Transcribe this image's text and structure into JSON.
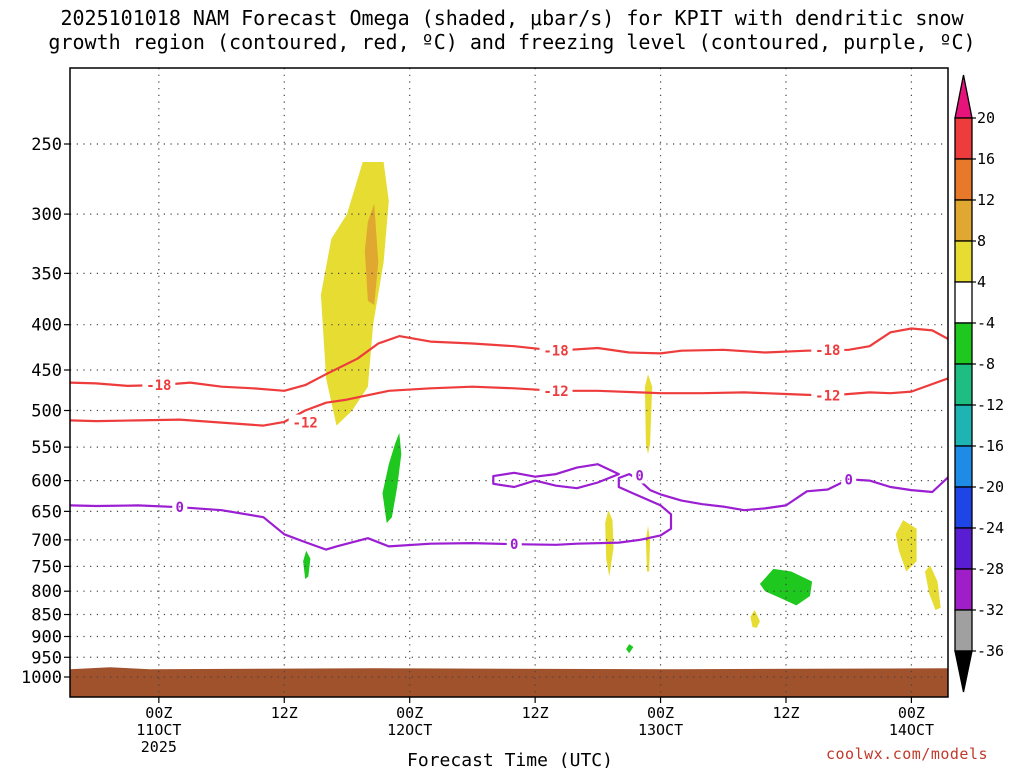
{
  "title_line1": "2025101018 NAM Forecast Omega (shaded, μbar/s) for KPIT with dendritic snow",
  "title_line2": "growth region (contoured, red, ºC) and freezing level (contoured, purple, ºC)",
  "credit": "coolwx.com/models",
  "chart_data": {
    "type": "contour",
    "title": "2025101018 NAM Forecast Omega (shaded, μbar/s) for KPIT with dendritic snow growth region (contoured, red, ºC) and freezing level (contoured, purple, ºC)",
    "xlabel": "Forecast Time (UTC)",
    "ylabel": "",
    "x_range_hours": [
      -2.5,
      81.5
    ],
    "y_axis": {
      "type": "log-pressure",
      "range_hPa": [
        1000,
        200
      ],
      "ticks": [
        250,
        300,
        350,
        400,
        450,
        500,
        550,
        600,
        650,
        700,
        750,
        800,
        850,
        900,
        950,
        1000
      ],
      "grid": "dotted"
    },
    "x_ticks": [
      {
        "hour": 6,
        "label": "00Z",
        "sub": "11OCT",
        "sub2": "2025"
      },
      {
        "hour": 18,
        "label": "12Z",
        "sub": "",
        "sub2": ""
      },
      {
        "hour": 30,
        "label": "00Z",
        "sub": "12OCT",
        "sub2": ""
      },
      {
        "hour": 42,
        "label": "12Z",
        "sub": "",
        "sub2": ""
      },
      {
        "hour": 54,
        "label": "00Z",
        "sub": "13OCT",
        "sub2": ""
      },
      {
        "hour": 66,
        "label": "12Z",
        "sub": "",
        "sub2": ""
      },
      {
        "hour": 78,
        "label": "00Z",
        "sub": "14OCT",
        "sub2": ""
      }
    ],
    "colorbar": {
      "labels": [
        "20",
        "16",
        "12",
        "8",
        "4",
        "-4",
        "-8",
        "-12",
        "-16",
        "-20",
        "-24",
        "-28",
        "-32",
        "-36"
      ],
      "colors": [
        "#ee3c3c",
        "#e8782a",
        "#e0a830",
        "#e6dc32",
        "#ffffff",
        "#1ec81e",
        "#1ebe82",
        "#1eb4b4",
        "#1e8ce6",
        "#1e46e6",
        "#5a1ed2",
        "#a01ec8",
        "#a0a0a0"
      ],
      "top_arrow_color": "#e6147a",
      "bottom_arrow_color": "#000000"
    },
    "series": [
      {
        "name": "-18",
        "kind": "dgz_contour",
        "color": "#ee3c3c",
        "label": "-18",
        "points": [
          [
            -2.5,
            465
          ],
          [
            0,
            466
          ],
          [
            3,
            469
          ],
          [
            6,
            468
          ],
          [
            9,
            465
          ],
          [
            12,
            470
          ],
          [
            15,
            472
          ],
          [
            18,
            475
          ],
          [
            20,
            468
          ],
          [
            22,
            455
          ],
          [
            25,
            437
          ],
          [
            27,
            420
          ],
          [
            29,
            412
          ],
          [
            32,
            418
          ],
          [
            36,
            420
          ],
          [
            40,
            423
          ],
          [
            44,
            428
          ],
          [
            48,
            425
          ],
          [
            51,
            430
          ],
          [
            54,
            431
          ],
          [
            56,
            428
          ],
          [
            60,
            427
          ],
          [
            64,
            430
          ],
          [
            68,
            428
          ],
          [
            72,
            427
          ],
          [
            74,
            423
          ],
          [
            76,
            408
          ],
          [
            78,
            404
          ],
          [
            80,
            406
          ],
          [
            81.5,
            415
          ]
        ],
        "labels_at": [
          [
            6,
            468
          ],
          [
            44,
            428
          ],
          [
            70,
            427
          ]
        ]
      },
      {
        "name": "-12",
        "kind": "dgz_contour",
        "color": "#ee3c3c",
        "label": "-12",
        "points": [
          [
            -2.5,
            513
          ],
          [
            0,
            514
          ],
          [
            4,
            513
          ],
          [
            8,
            512
          ],
          [
            12,
            516
          ],
          [
            16,
            520
          ],
          [
            18,
            515
          ],
          [
            20,
            500
          ],
          [
            22,
            490
          ],
          [
            24,
            486
          ],
          [
            28,
            475
          ],
          [
            32,
            472
          ],
          [
            36,
            470
          ],
          [
            40,
            472
          ],
          [
            44,
            475
          ],
          [
            48,
            475
          ],
          [
            52,
            477
          ],
          [
            54,
            478
          ],
          [
            58,
            478
          ],
          [
            62,
            477
          ],
          [
            66,
            479
          ],
          [
            70,
            481
          ],
          [
            72,
            479
          ],
          [
            74,
            477
          ],
          [
            76,
            478
          ],
          [
            78,
            476
          ],
          [
            81.5,
            460
          ]
        ],
        "labels_at": [
          [
            20,
            516
          ],
          [
            44,
            475
          ],
          [
            70,
            481
          ]
        ]
      },
      {
        "name": "0",
        "kind": "freezing_contour",
        "color": "#9b1ed2",
        "label": "0",
        "points": [
          [
            -2.5,
            640
          ],
          [
            0,
            641
          ],
          [
            4,
            640
          ],
          [
            8,
            643
          ],
          [
            12,
            648
          ],
          [
            16,
            660
          ],
          [
            18,
            690
          ],
          [
            20,
            704
          ],
          [
            22,
            718
          ],
          [
            23,
            712
          ],
          [
            26,
            697
          ],
          [
            28,
            712
          ],
          [
            32,
            707
          ],
          [
            36,
            706
          ],
          [
            40,
            708
          ],
          [
            44,
            709
          ],
          [
            46,
            707
          ],
          [
            50,
            705
          ],
          [
            52,
            700
          ],
          [
            54,
            692
          ],
          [
            55,
            680
          ],
          [
            55,
            655
          ],
          [
            54,
            640
          ],
          [
            52,
            625
          ],
          [
            50,
            610
          ],
          [
            50,
            596
          ],
          [
            51,
            590
          ],
          [
            52,
            600
          ],
          [
            53,
            615
          ],
          [
            54,
            622
          ],
          [
            56,
            632
          ],
          [
            58,
            638
          ],
          [
            60,
            642
          ],
          [
            62,
            648
          ],
          [
            64,
            645
          ],
          [
            66,
            640
          ],
          [
            68,
            617
          ],
          [
            70,
            614
          ],
          [
            72,
            598
          ],
          [
            74,
            600
          ],
          [
            76,
            610
          ],
          [
            78,
            615
          ],
          [
            80,
            618
          ],
          [
            81.5,
            595
          ]
        ],
        "labels_at": [
          [
            8,
            643
          ],
          [
            40,
            708
          ],
          [
            52,
            592
          ],
          [
            72,
            598
          ]
        ]
      },
      {
        "name": "0-loop",
        "kind": "freezing_contour",
        "color": "#9b1ed2",
        "closed": true,
        "points": [
          [
            38,
            593
          ],
          [
            40,
            588
          ],
          [
            42,
            594
          ],
          [
            44,
            590
          ],
          [
            46,
            580
          ],
          [
            48,
            575
          ],
          [
            50,
            590
          ],
          [
            48,
            603
          ],
          [
            46,
            612
          ],
          [
            44,
            608
          ],
          [
            42,
            600
          ],
          [
            40,
            610
          ],
          [
            38,
            605
          ]
        ]
      }
    ],
    "shaded_regions": [
      {
        "name": "upper-lift",
        "omega_bin": "4 to 8",
        "color": "#e6dc32",
        "points": [
          [
            23,
            520
          ],
          [
            22,
            460
          ],
          [
            21.5,
            370
          ],
          [
            22.5,
            320
          ],
          [
            24,
            300
          ],
          [
            25.5,
            262
          ],
          [
            27.5,
            262
          ],
          [
            28,
            290
          ],
          [
            27.5,
            340
          ],
          [
            26.5,
            400
          ],
          [
            26,
            470
          ],
          [
            24.5,
            500
          ]
        ]
      },
      {
        "name": "upper-lift-core",
        "omega_bin": "8 to 12",
        "color": "#e0a830",
        "points": [
          [
            26,
            306
          ],
          [
            26.6,
            292
          ],
          [
            27,
            340
          ],
          [
            26.6,
            380
          ],
          [
            26,
            376
          ],
          [
            25.7,
            330
          ]
        ]
      },
      {
        "name": "lift-13oct-thin",
        "omega_bin": "4 to 8",
        "color": "#e6dc32",
        "points": [
          [
            52.5,
            470
          ],
          [
            52.8,
            455
          ],
          [
            53.2,
            470
          ],
          [
            53.0,
            545
          ],
          [
            52.8,
            560
          ],
          [
            52.6,
            545
          ]
        ]
      },
      {
        "name": "lift-12z-12oct-a",
        "omega_bin": "4 to 8",
        "color": "#e6dc32",
        "points": [
          [
            48.7,
            670
          ],
          [
            49.0,
            648
          ],
          [
            49.4,
            665
          ],
          [
            49.5,
            715
          ],
          [
            49.1,
            770
          ],
          [
            48.8,
            735
          ]
        ]
      },
      {
        "name": "lift-12z-12oct-b",
        "omega_bin": "4 to 8",
        "color": "#e6dc32",
        "points": [
          [
            52.6,
            700
          ],
          [
            52.8,
            675
          ],
          [
            53.0,
            700
          ],
          [
            52.9,
            760
          ],
          [
            52.7,
            760
          ]
        ]
      },
      {
        "name": "lift-14oct-a",
        "omega_bin": "4 to 8",
        "color": "#e6dc32",
        "points": [
          [
            76.5,
            690
          ],
          [
            77.2,
            665
          ],
          [
            78.5,
            680
          ],
          [
            78.5,
            740
          ],
          [
            77.5,
            760
          ],
          [
            76.8,
            720
          ]
        ]
      },
      {
        "name": "lift-14oct-b",
        "omega_bin": "4 to 8",
        "color": "#e6dc32",
        "points": [
          [
            79.3,
            760
          ],
          [
            79.8,
            748
          ],
          [
            80.5,
            780
          ],
          [
            80.8,
            835
          ],
          [
            80.3,
            840
          ],
          [
            79.7,
            805
          ]
        ]
      },
      {
        "name": "lift-small",
        "omega_bin": "4 to 8",
        "color": "#e6dc32",
        "points": [
          [
            62.6,
            855
          ],
          [
            63.0,
            840
          ],
          [
            63.5,
            865
          ],
          [
            63.2,
            880
          ],
          [
            62.8,
            878
          ]
        ]
      },
      {
        "name": "sink-12oct",
        "omega_bin": "-4 to -8",
        "color": "#1ec81e",
        "points": [
          [
            28.0,
            575
          ],
          [
            28.6,
            545
          ],
          [
            29.0,
            530
          ],
          [
            29.2,
            560
          ],
          [
            28.8,
            610
          ],
          [
            28.3,
            660
          ],
          [
            27.8,
            670
          ],
          [
            27.4,
            620
          ]
        ]
      },
      {
        "name": "sink-11oct",
        "omega_bin": "-4 to -8",
        "color": "#1ec81e",
        "points": [
          [
            19.8,
            740
          ],
          [
            20.1,
            720
          ],
          [
            20.5,
            735
          ],
          [
            20.3,
            770
          ],
          [
            20.0,
            775
          ]
        ]
      },
      {
        "name": "sink-13oct",
        "omega_bin": "-4 to -8",
        "color": "#1ec81e",
        "points": [
          [
            63.5,
            785
          ],
          [
            64.8,
            755
          ],
          [
            66.5,
            760
          ],
          [
            68.5,
            780
          ],
          [
            68.3,
            810
          ],
          [
            67.0,
            830
          ],
          [
            65.5,
            815
          ],
          [
            64.0,
            800
          ]
        ]
      },
      {
        "name": "sink-tiny",
        "omega_bin": "-4 to -8",
        "color": "#1ec81e",
        "points": [
          [
            50.7,
            930
          ],
          [
            51.0,
            918
          ],
          [
            51.4,
            925
          ],
          [
            51.0,
            940
          ]
        ]
      }
    ],
    "terrain": {
      "color": "#a0522d",
      "top_hPa": 980
    }
  }
}
